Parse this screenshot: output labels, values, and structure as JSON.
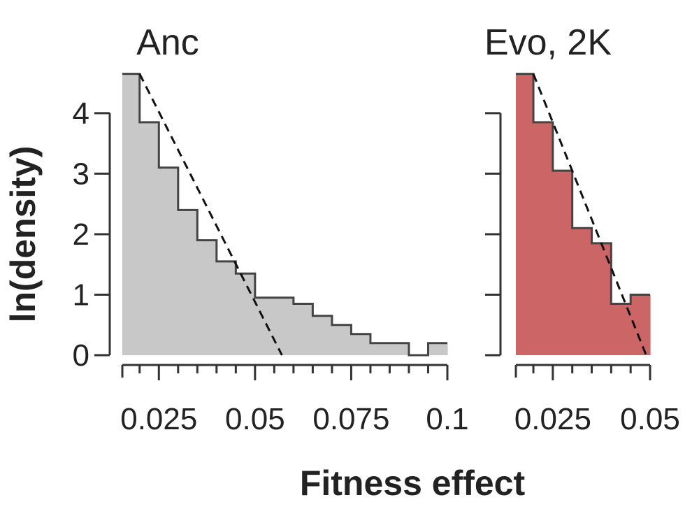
{
  "chart_data": [
    {
      "type": "histogram",
      "title": "Anc",
      "xlabel": "Fitness effect",
      "ylabel": "ln(density)",
      "xlim": [
        0.0155,
        0.1
      ],
      "ylim": [
        0,
        4.6
      ],
      "x_ticks": [
        0.025,
        0.05,
        0.075,
        0.1
      ],
      "x_tick_labels": [
        "0.025",
        "0.05",
        "0.075",
        "0.1"
      ],
      "x_minor_ticks": [
        0.02,
        0.03,
        0.035,
        0.04,
        0.045,
        0.055,
        0.06,
        0.065,
        0.07,
        0.08,
        0.085,
        0.09,
        0.095
      ],
      "y_ticks": [
        0,
        1,
        2,
        3,
        4
      ],
      "y_tick_labels": [
        "0",
        "1",
        "2",
        "3",
        "4"
      ],
      "bin_edges": [
        0.0155,
        0.02,
        0.025,
        0.03,
        0.035,
        0.04,
        0.045,
        0.05,
        0.055,
        0.06,
        0.065,
        0.07,
        0.075,
        0.08,
        0.085,
        0.09,
        0.095,
        0.1
      ],
      "values": [
        4.65,
        3.85,
        3.1,
        2.4,
        1.9,
        1.55,
        1.35,
        0.95,
        0.95,
        0.85,
        0.65,
        0.5,
        0.35,
        0.2,
        0.2,
        0.0,
        0.2
      ],
      "fill": "#c8c8c8",
      "stroke": "#444444",
      "fit_line": {
        "x": [
          0.02,
          0.057
        ],
        "y": [
          4.65,
          0.0
        ]
      }
    },
    {
      "type": "histogram",
      "title": "Evo, 2K",
      "xlabel": "Fitness effect",
      "ylabel": "ln(density)",
      "xlim": [
        0.0155,
        0.05
      ],
      "ylim": [
        0,
        4.6
      ],
      "x_ticks": [
        0.025,
        0.05
      ],
      "x_tick_labels": [
        "0.025",
        "0.05"
      ],
      "x_minor_ticks": [
        0.02,
        0.03,
        0.035,
        0.04,
        0.045
      ],
      "y_ticks": [
        0,
        1,
        2,
        3,
        4
      ],
      "y_tick_labels": [
        "",
        "",
        "",
        "",
        ""
      ],
      "bin_edges": [
        0.0155,
        0.02,
        0.025,
        0.03,
        0.035,
        0.04,
        0.045,
        0.05
      ],
      "values": [
        4.65,
        3.85,
        3.05,
        2.1,
        1.85,
        0.85,
        1.0
      ],
      "fill": "#cc6666",
      "stroke": "#444444",
      "fit_line": {
        "x": [
          0.02,
          0.049
        ],
        "y": [
          4.65,
          0.0
        ]
      }
    }
  ],
  "shared": {
    "xlabel": "Fitness effect",
    "ylabel": "ln(density)"
  }
}
